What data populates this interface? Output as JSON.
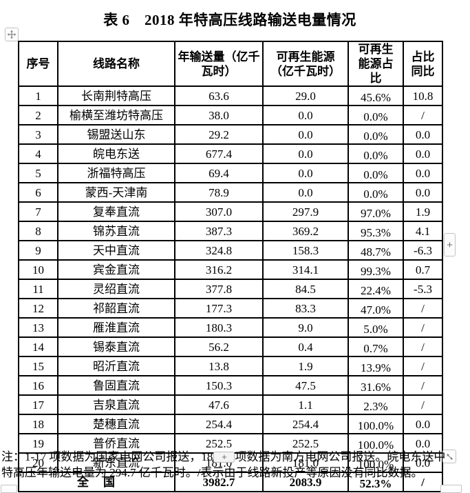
{
  "title": "表 6　2018 年特高压线路输送电量情况",
  "colors": {
    "background": "#ffffff",
    "text": "#000000",
    "table_border": "#000000",
    "control_border": "#c3c3c3",
    "control_glyph": "#6b6b6b"
  },
  "table": {
    "headers": [
      "序号",
      "线路名称",
      "年输送量（亿千瓦时）",
      "可再生能源（亿千瓦时）",
      "可再生能源占比",
      "占比同比"
    ],
    "rows": [
      [
        "1",
        "长南荆特高压",
        "63.6",
        "29.0",
        "45.6%",
        "10.8"
      ],
      [
        "2",
        "榆横至潍坊特高压",
        "38.0",
        "0.0",
        "0.0%",
        "/"
      ],
      [
        "3",
        "锡盟送山东",
        "29.2",
        "0.0",
        "0.0%",
        "0.0"
      ],
      [
        "4",
        "皖电东送",
        "677.4",
        "0.0",
        "0.0%",
        "0.0"
      ],
      [
        "5",
        "浙福特高压",
        "69.4",
        "0.0",
        "0.0%",
        "0.0"
      ],
      [
        "6",
        "蒙西-天津南",
        "78.9",
        "0.0",
        "0.0%",
        "0.0"
      ],
      [
        "7",
        "复奉直流",
        "307.0",
        "297.9",
        "97.0%",
        "1.9"
      ],
      [
        "8",
        "锦苏直流",
        "387.3",
        "369.2",
        "95.3%",
        "4.1"
      ],
      [
        "9",
        "天中直流",
        "324.8",
        "158.3",
        "48.7%",
        "-6.3"
      ],
      [
        "10",
        "宾金直流",
        "316.2",
        "314.1",
        "99.3%",
        "0.7"
      ],
      [
        "11",
        "灵绍直流",
        "377.8",
        "84.5",
        "22.4%",
        "-5.3"
      ],
      [
        "12",
        "祁韶直流",
        "177.3",
        "83.3",
        "47.0%",
        "/"
      ],
      [
        "13",
        "雁淮直流",
        "180.3",
        "9.0",
        "5.0%",
        "/"
      ],
      [
        "14",
        "锡泰直流",
        "56.2",
        "0.4",
        "0.7%",
        "/"
      ],
      [
        "15",
        "昭沂直流",
        "13.8",
        "1.9",
        "13.9%",
        "/"
      ],
      [
        "16",
        "鲁固直流",
        "150.3",
        "47.5",
        "31.6%",
        "/"
      ],
      [
        "17",
        "吉泉直流",
        "47.6",
        "1.1",
        "2.3%",
        "/"
      ],
      [
        "18",
        "楚穗直流",
        "254.4",
        "254.4",
        "100.0%",
        "0.0"
      ],
      [
        "19",
        "普侨直流",
        "252.5",
        "252.5",
        "100.0%",
        "0.0"
      ],
      [
        "20",
        "新东直流",
        "181.0",
        "181.0",
        "100.0%",
        "0.0"
      ]
    ],
    "total": {
      "label": "全　国",
      "annual": "3982.7",
      "renewable": "2083.9",
      "share": "52.3%",
      "yoy": "/"
    }
  },
  "note": {
    "line1_prefix": "注：1-17 项数据为国家电网公司报送，18",
    "line1_suffix": "项数据为南方电网公司报送。皖电东送中",
    "line2": "特高压年输送电量为 294.7 亿千瓦时。/表示由于线路新投产等原因没有同比数据。",
    "plus_button_label": "+"
  },
  "controls": {
    "add_column_label": "+"
  }
}
